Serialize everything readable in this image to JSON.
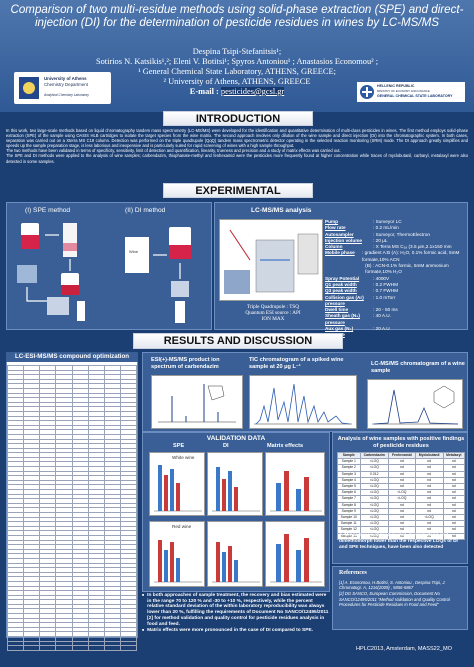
{
  "header": {
    "title": "Comparison of two multi-residue methods using solid-phase extraction (SPE) and direct-injection (DI) for the determination of pesticide residues in wines by LC-MS/MS",
    "authors_line1": "Despina Tsipi-Stefanitsis¹;",
    "authors_line2": "Sotirios N. Katsikis¹,²; Eleni V. Botitsi¹; Spyros Antoniou¹ ; Anastasios Economou² ;",
    "affiliation1": "¹ General Chemical State Laboratory, ATHENS, GREECE;",
    "affiliation2": "² University of Athens, ATHENS, GREECE",
    "email_label": "E-mail :",
    "email": "pesticides@gcsl.gr",
    "logo_left_line1": "University of Athens",
    "logo_left_line2": "Chemistry Department",
    "logo_left_line3": "Analytical Chemistry Laboratory",
    "logo_right_line1": "HELLENIC REPUBLIC",
    "logo_right_line2": "MINISTRY OF ECONOMY AND FINANCE",
    "logo_right_line3": "GENERAL CHEMICAL STATE LABORATORY"
  },
  "intro": {
    "heading": "INTRODUCTION",
    "p1": "In this work, two large-scale methods based on liquid chromatography tandem mass spectrometry (LC-MS/MS) were developed for the identification and quantitative determination of multi-class pesticides in wines. The first method employs solid-phase extraction (SPE) of the sample using OASIS HLB cartridges to isolate the target species from the wine matrix. The second approach involves only dilution of the wine sample and direct injection (DI) into the chromatographic system. In both cases, separation was carried out on a Xterra MS C18 column. Detection was performed on the triple quadrupole (QqQ) tandem mass spectrometric detector operating in the selected reaction monitoring (SRM) mode. The DI approach greatly simplifies and speeds up the sample preparation stage, is less laborious and inexpensive and is particularly suited for rapid screening of wines with a high sample throughput.",
    "p2": "The two methods have been validated in terms of specificity, sensitivity, limit of detection and quantification, linearity, trueness and precision and a study of matrix effects was carried out.",
    "p3": "The SPE and DI methods were applied to the analysis of wine samples; carbendazim, thiophanate-methyl and fenhexamid were the pesticides more frequently found at higher concentration while traces of myclobutanil, carbaryl, metalaxyl were also detected in some samples."
  },
  "experimental": {
    "heading": "EXPERIMENTAL",
    "spe_label": "(I) SPE method",
    "di_label": "(II) DI method",
    "lcms_label": "LC-MS/MS analysis",
    "wine_label": "Wine",
    "instrument_caption1": "Triple Quadrupole : TSQ",
    "instrument_caption2": "Quantum ESI source : API",
    "instrument_caption3": "ION MAX",
    "specs": [
      {
        "k": "Pump",
        "v": ": Surveyor LC"
      },
      {
        "k": "Flow rate",
        "v": ": 0.2 mL/min"
      },
      {
        "k": "Autosampler",
        "v": ": Surveyor, ThermoElectron"
      },
      {
        "k": "Injection volume",
        "v": ": 20 μL"
      },
      {
        "k": "Column",
        "v": ": X Terra MS C₁₈ (3.5 μm,2.1x150 mm"
      },
      {
        "k": "Mobile phase",
        "v": ": gradient A:B (A): H₂O, 0.1% formic acid, 5mM formate,10% ACN"
      },
      {
        "k": "",
        "v": "(B) : ACN-0.1% formic, 5mM ammonium formate,10% H₂O"
      },
      {
        "k": "Spray Potential",
        "v": ": 4000V"
      },
      {
        "k": "Q1 peak width",
        "v": ": 0.2 FWHM"
      },
      {
        "k": "Q3 peak width",
        "v": ": 0.7 FWHM"
      },
      {
        "k": "Collision gas (Ar) pressure",
        "v": ": 1.0 mTorr"
      },
      {
        "k": "Dwell time",
        "v": ": 20 - 50 ms"
      },
      {
        "k": "Sheath gas (N₂) pressure",
        "v": ": 40 A.U."
      },
      {
        "k": "Aux gas (N₂) pressure",
        "v": ": 20 A.U"
      }
    ]
  },
  "results": {
    "heading": "RESULTS AND DISCUSSION",
    "table_title": "LC-ESI-MS/MS compound optimization",
    "esi_title": "ESI(+)-MS/MS product ion spectrum of carbendazim",
    "tic_title": "TIC chromatogram of a spiked wine sample at 20 μg L⁻¹",
    "lcms_wine_title": "LC-MS/MS chromatogram of a wine sample",
    "validation_title": "VALIDATION DATA",
    "spe_label": "SPE",
    "di_label": "DI",
    "matrix_label": "Matrix effects",
    "white_wine": "White wine",
    "red_wine": "Red wine",
    "analysis_title": "Analysis of wine samples with positive findings of pesticide residues",
    "analysis_headers": [
      "Sample",
      "Carbendazim",
      "Fenhexamid",
      "Myclobutanil",
      "Metalaxyl"
    ],
    "analysis_rows": [
      [
        "Sample 1",
        "<LOQ",
        "nd",
        "nd",
        "nd"
      ],
      [
        "Sample 2",
        "<LOQ",
        "nd",
        "nd",
        "nd"
      ],
      [
        "Sample 3",
        "0.012",
        "nd",
        "nd",
        "nd"
      ],
      [
        "Sample 4",
        "<LOQ",
        "nd",
        "nd",
        "nd"
      ],
      [
        "Sample 5",
        "<LOQ",
        "nd",
        "nd",
        "nd"
      ],
      [
        "Sample 6",
        "<LOQ",
        "<LOQ",
        "nd",
        "nd"
      ],
      [
        "Sample 7",
        "<LOQ",
        "<LOQ",
        "nd",
        "nd"
      ],
      [
        "Sample 8",
        "<LOQ",
        "nd",
        "nd",
        "nd"
      ],
      [
        "Sample 9",
        "<LOQ",
        "nd",
        "nd",
        "nd"
      ],
      [
        "Sample 10",
        "<LOQ",
        "nd",
        "<LOQ",
        "nd"
      ],
      [
        "Sample 11",
        "<LOQ",
        "nd",
        "nd",
        "nd"
      ],
      [
        "Sample 12",
        "<LOQ",
        "nd",
        "nd",
        "nd"
      ],
      [
        "Sample 13",
        "<LOQ",
        "nd",
        "nd",
        "nd"
      ]
    ],
    "analysis_note": "Minor traces of triadimenol, myclobutanil and dimethomorph lower than the respective LOQs of DI and SPE techniques, have been also detected",
    "bullets": [
      "In both approaches of sample treatment, the recovery and bias estimated were in the range 70 to 120 % and -30 to +10 %, respectively, while the percent relative standard deviation of the within laboratory reproducibility was always lower than 20 %, fulfilling the requirements of Document No SANCO/12495/2011 [2] for method validation and quality control for pesticide residues analysis in food and feed.",
      "Matrix effects were more pronounced in the case of DI compared to SPE."
    ],
    "refs_title": "References",
    "refs": [
      "[1] A. Economou, H.Botitsi, S. Antoniou , Despina Tsipi, J. Chromatogr. A, 1216(2009) , 5856-5867",
      "[2] DG SANCO, European Commission, Document No SANCO/12495/2011 \"Method Validation and Quality Control Procedures for Pesticide Residues in Food and Feed\""
    ]
  },
  "footer": "HPLC2013, Amsterdam, MASS22_MO"
}
